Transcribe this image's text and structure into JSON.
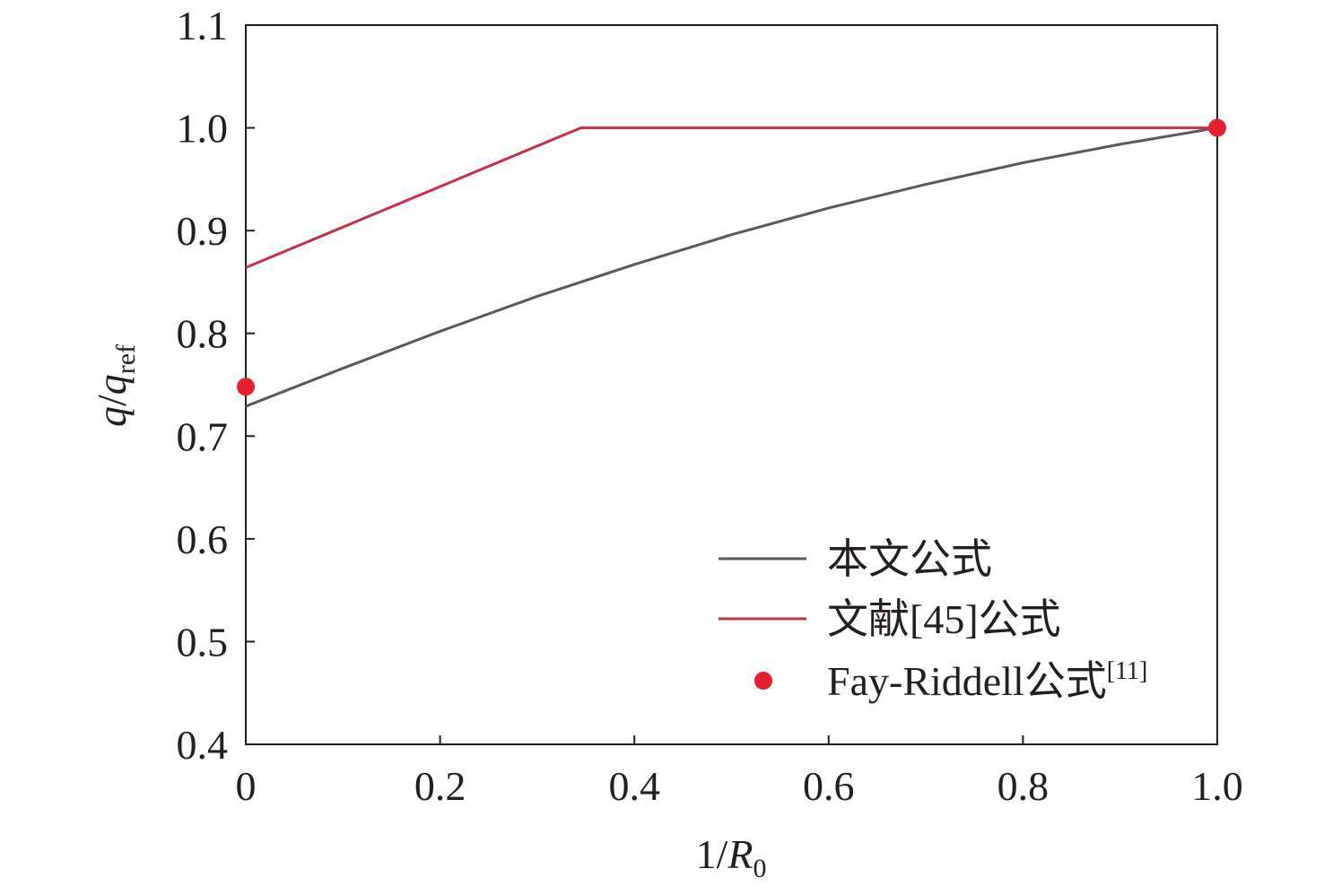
{
  "chart_data": {
    "type": "line",
    "xlabel": {
      "base": "1/",
      "var": "R",
      "sub": "0"
    },
    "ylabel": {
      "var1": "q",
      "sep": "/",
      "var2": "q",
      "sub": "ref"
    },
    "xlim": [
      0,
      1.0
    ],
    "ylim": [
      0.4,
      1.1
    ],
    "xticks": [
      0,
      0.2,
      0.4,
      0.6,
      0.8,
      1.0
    ],
    "xtick_labels": [
      "0",
      "0.2",
      "0.4",
      "0.6",
      "0.8",
      "1.0"
    ],
    "yticks": [
      0.4,
      0.5,
      0.6,
      0.7,
      0.8,
      0.9,
      1.0,
      1.1
    ],
    "ytick_labels": [
      "0.4",
      "0.5",
      "0.6",
      "0.7",
      "0.8",
      "0.9",
      "1.0",
      "1.1"
    ],
    "grid": false,
    "legend_position": "bottom-right",
    "colors": {
      "axis": "#231f20",
      "this_paper": "#595959",
      "ref45": "#c8304a",
      "fay_riddell": "#e8202e"
    },
    "series": [
      {
        "name": "本文公式",
        "kind": "line",
        "x": [
          0,
          0.1,
          0.2,
          0.3,
          0.4,
          0.5,
          0.6,
          0.7,
          0.8,
          0.9,
          1.0
        ],
        "y": [
          0.729,
          0.766,
          0.802,
          0.836,
          0.867,
          0.896,
          0.922,
          0.945,
          0.966,
          0.984,
          1.0
        ]
      },
      {
        "name": "文献[45]公式",
        "kind": "line",
        "x": [
          0,
          0.345,
          1.0
        ],
        "y": [
          0.864,
          1.0,
          1.0
        ]
      },
      {
        "name": "Fay-Riddell公式",
        "name_sup": "[11]",
        "kind": "scatter",
        "x": [
          0,
          1.0
        ],
        "y": [
          0.748,
          1.0
        ]
      }
    ]
  }
}
